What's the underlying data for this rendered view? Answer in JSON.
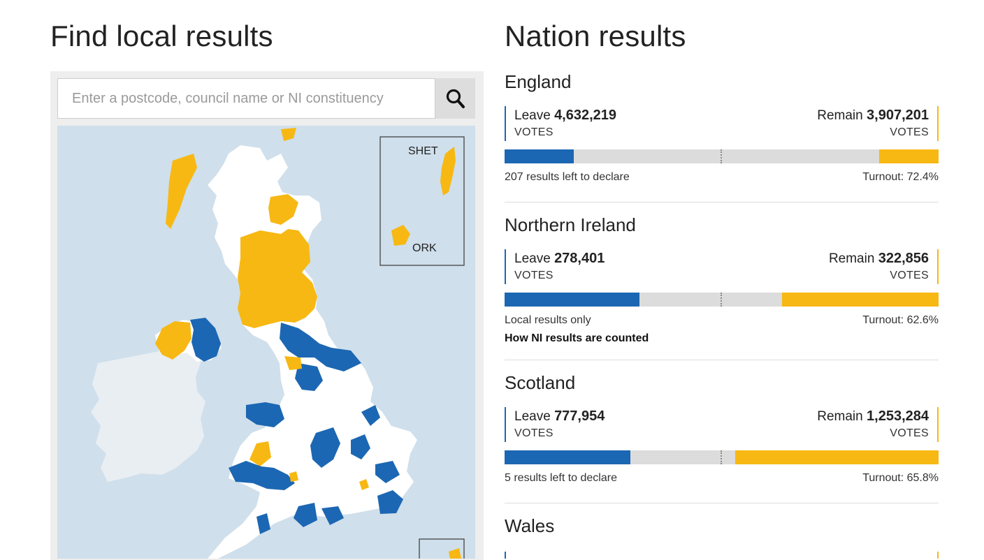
{
  "left": {
    "title": "Find local results",
    "search_placeholder": "Enter a postcode, council name or NI constituency",
    "inset_labels": {
      "shetland": "SHET",
      "orkney": "ORK"
    }
  },
  "right": {
    "title": "Nation results",
    "nations": [
      {
        "name": "England",
        "leave_label": "Leave",
        "leave_votes": "4,632,219",
        "remain_label": "Remain",
        "remain_votes": "3,907,201",
        "votes_unit": "VOTES",
        "leave_share": 0.16,
        "remain_share": 0.137,
        "status": "207 results left to declare",
        "turnout": "Turnout: 72.4%"
      },
      {
        "name": "Northern Ireland",
        "leave_label": "Leave",
        "leave_votes": "278,401",
        "remain_label": "Remain",
        "remain_votes": "322,856",
        "votes_unit": "VOTES",
        "leave_share": 0.31,
        "remain_share": 0.361,
        "status": "Local results only",
        "link": "How NI results are counted",
        "turnout": "Turnout: 62.6%"
      },
      {
        "name": "Scotland",
        "leave_label": "Leave",
        "leave_votes": "777,954",
        "remain_label": "Remain",
        "remain_votes": "1,253,284",
        "votes_unit": "VOTES",
        "leave_share": 0.29,
        "remain_share": 0.469,
        "status": "5 results left to declare",
        "turnout": "Turnout: 65.8%"
      },
      {
        "name": "Wales"
      }
    ]
  },
  "colors": {
    "leave": "#1c67b3",
    "remain": "#f7b813",
    "sea": "#cfdfeb",
    "ireland": "#e9eef3",
    "undeclared": "#ffffff"
  }
}
